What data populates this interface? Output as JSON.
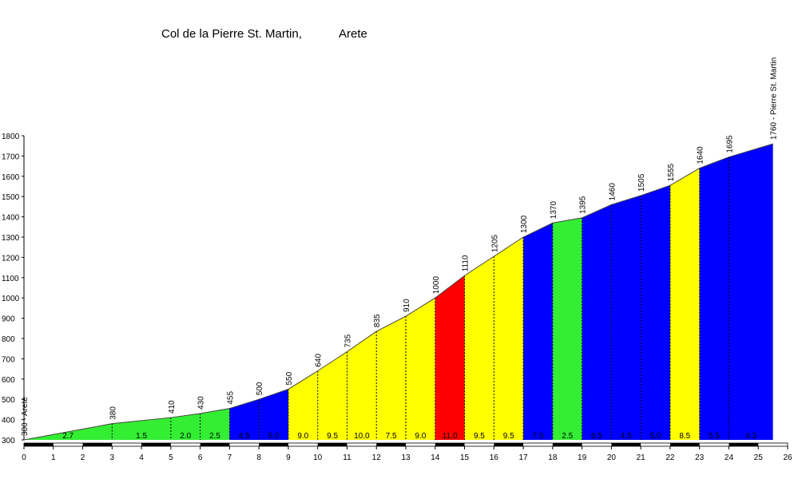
{
  "chart_data": {
    "type": "climb-profile",
    "title": "Col de la Pierre St. Martin,",
    "subtitle": "Arete",
    "x": [
      0,
      3,
      5,
      6,
      7,
      8,
      9,
      10,
      11,
      12,
      13,
      14,
      15,
      16,
      17,
      18,
      19,
      20,
      21,
      22,
      23,
      24,
      25.5
    ],
    "values": [
      300,
      380,
      410,
      430,
      455,
      500,
      550,
      640,
      735,
      835,
      910,
      1000,
      1110,
      1205,
      1300,
      1370,
      1395,
      1460,
      1505,
      1555,
      1640,
      1695,
      1760
    ],
    "value_labels": [
      "300 - Arete",
      "380",
      "410",
      "430",
      "455",
      "500",
      "550",
      "640",
      "735",
      "835",
      "910",
      "1000",
      "1110",
      "1205",
      "1300",
      "1370",
      "1395",
      "1460",
      "1505",
      "1555",
      "1640",
      "1695",
      "1760 - Pierre St. Martin"
    ],
    "gradients": [
      2.7,
      1.5,
      2.0,
      2.5,
      4.5,
      5.0,
      9.0,
      9.5,
      10.0,
      7.5,
      9.0,
      11.0,
      9.5,
      9.5,
      7.0,
      2.5,
      6.5,
      4.5,
      5.0,
      8.5,
      5.5,
      4.3
    ],
    "gradient_labels": [
      "2.7",
      "1.5",
      "2.0",
      "2.5",
      "4.5",
      "5.0",
      "9.0",
      "9.5",
      "10.0",
      "7.5",
      "9.0",
      "11.0",
      "9.5",
      "9.5",
      "7.0",
      "2.5",
      "6.5",
      "4.5",
      "5.0",
      "8.5",
      "5.5",
      "4.3"
    ],
    "colors": [
      "#33ee33",
      "#33ee33",
      "#33ee33",
      "#33ee33",
      "#0000ff",
      "#0000ff",
      "#ffff00",
      "#ffff00",
      "#ffff00",
      "#ffff00",
      "#ffff00",
      "#ff0000",
      "#ffff00",
      "#ffff00",
      "#0000ff",
      "#33ee33",
      "#0000ff",
      "#0000ff",
      "#0000ff",
      "#ffff00",
      "#0000ff",
      "#0000ff"
    ],
    "xlim": [
      0,
      26
    ],
    "xticks": [
      0,
      1,
      2,
      3,
      4,
      5,
      6,
      7,
      8,
      9,
      10,
      11,
      12,
      13,
      14,
      15,
      16,
      17,
      18,
      19,
      20,
      21,
      22,
      23,
      24,
      25,
      26
    ],
    "ylim": [
      300,
      1800
    ],
    "yticks": [
      300,
      400,
      500,
      600,
      700,
      800,
      900,
      1000,
      1100,
      1200,
      1300,
      1400,
      1500,
      1600,
      1700,
      1800
    ]
  }
}
